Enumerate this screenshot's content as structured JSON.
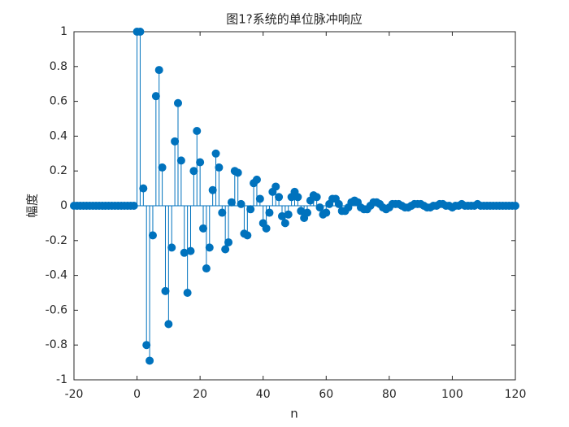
{
  "chart_data": {
    "type": "stem",
    "title": "图1?系统的单位脉冲响应",
    "x_label": "n",
    "y_label": "幅度",
    "color": "#0072BD",
    "x": [
      -20,
      -19,
      -18,
      -17,
      -16,
      -15,
      -14,
      -13,
      -12,
      -11,
      -10,
      -9,
      -8,
      -7,
      -6,
      -5,
      -4,
      -3,
      -2,
      -1,
      0,
      1,
      2,
      3,
      4,
      5,
      6,
      7,
      8,
      9,
      10,
      11,
      12,
      13,
      14,
      15,
      16,
      17,
      18,
      19,
      20,
      21,
      22,
      23,
      24,
      25,
      26,
      27,
      28,
      29,
      30,
      31,
      32,
      33,
      34,
      35,
      36,
      37,
      38,
      39,
      40,
      41,
      42,
      43,
      44,
      45,
      46,
      47,
      48,
      49,
      50,
      51,
      52,
      53,
      54,
      55,
      56,
      57,
      58,
      59,
      60,
      61,
      62,
      63,
      64,
      65,
      66,
      67,
      68,
      69,
      70,
      71,
      72,
      73,
      74,
      75,
      76,
      77,
      78,
      79,
      80,
      81,
      82,
      83,
      84,
      85,
      86,
      87,
      88,
      89,
      90,
      91,
      92,
      93,
      94,
      95,
      96,
      97,
      98,
      99,
      100,
      101,
      102,
      103,
      104,
      105,
      106,
      107,
      108,
      109,
      110,
      111,
      112,
      113,
      114,
      115,
      116,
      117,
      118,
      119,
      120
    ],
    "values": [
      0,
      0,
      0,
      0,
      0,
      0,
      0,
      0,
      0,
      0,
      0,
      0,
      0,
      0,
      0,
      0,
      0,
      0,
      0,
      0,
      1,
      1,
      0.1,
      -0.8,
      -0.89,
      -0.17,
      0.63,
      0.78,
      0.22,
      -0.49,
      -0.68,
      -0.24,
      0.37,
      0.59,
      0.26,
      -0.27,
      -0.5,
      -0.26,
      0.2,
      0.43,
      0.25,
      -0.13,
      -0.36,
      -0.24,
      0.09,
      0.3,
      0.22,
      -0.04,
      -0.25,
      -0.21,
      0.02,
      0.2,
      0.19,
      0.01,
      -0.16,
      -0.17,
      -0.02,
      0.13,
      0.15,
      0.04,
      -0.1,
      -0.13,
      -0.04,
      0.08,
      0.11,
      0.05,
      -0.06,
      -0.1,
      -0.05,
      0.05,
      0.08,
      0.05,
      -0.03,
      -0.07,
      -0.04,
      0.03,
      0.06,
      0.05,
      -0.01,
      -0.05,
      -0.04,
      0.01,
      0.04,
      0.04,
      0.01,
      -0.03,
      -0.03,
      -0.01,
      0.02,
      0.03,
      0.02,
      -0.01,
      -0.02,
      -0.02,
      0,
      0.02,
      0.02,
      0.01,
      -0.01,
      -0.02,
      -0.01,
      0.01,
      0.01,
      0.01,
      0,
      -0.01,
      -0.01,
      0,
      0.01,
      0.01,
      0.01,
      0,
      -0.01,
      -0.01,
      0,
      0,
      0.01,
      0.01,
      0,
      0,
      -0.01,
      0,
      0,
      0.01,
      0,
      0,
      0,
      0,
      0.01,
      0,
      0,
      0,
      0,
      0,
      0,
      0,
      0,
      0,
      0,
      0,
      0
    ],
    "xlim": [
      -20,
      120
    ],
    "xticks": [
      -20,
      0,
      20,
      40,
      60,
      80,
      100,
      120
    ],
    "ylim": [
      -1,
      1
    ],
    "yticks": [
      -1,
      -0.8,
      -0.6,
      -0.4,
      -0.2,
      0,
      0.2,
      0.4,
      0.6,
      0.8,
      1
    ]
  }
}
